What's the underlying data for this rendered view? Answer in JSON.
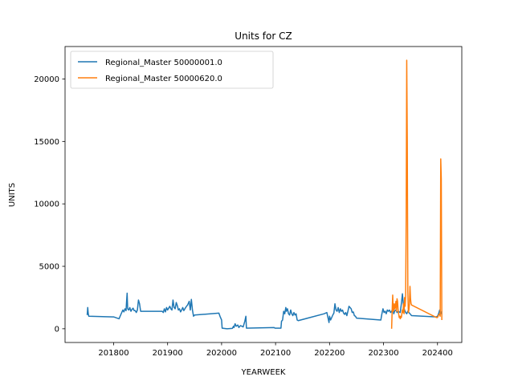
{
  "chart_data": {
    "type": "line",
    "title": "Units for CZ",
    "xlabel": "YEARWEEK",
    "ylabel": "UNITS",
    "xlim": [
      201710,
      202445
    ],
    "ylim": [
      -1100,
      22600
    ],
    "x_ticks": [
      201800,
      201900,
      202000,
      202100,
      202200,
      202300,
      202400
    ],
    "y_ticks": [
      0,
      5000,
      10000,
      15000,
      20000
    ],
    "grid": false,
    "legend_position": "top-left",
    "series": [
      {
        "name": "Regional_Master 50000001.0",
        "color": "#1f77b4",
        "points": [
          [
            201751,
            1100
          ],
          [
            201752,
            1700
          ],
          [
            201753,
            1200
          ],
          [
            201754,
            1000
          ],
          [
            201800,
            950
          ],
          [
            201810,
            800
          ],
          [
            201815,
            1300
          ],
          [
            201817,
            1500
          ],
          [
            201819,
            1350
          ],
          [
            201821,
            1600
          ],
          [
            201823,
            1450
          ],
          [
            201824,
            2200
          ],
          [
            201825,
            2850
          ],
          [
            201826,
            1600
          ],
          [
            201828,
            1500
          ],
          [
            201830,
            1700
          ],
          [
            201832,
            1400
          ],
          [
            201834,
            1550
          ],
          [
            201836,
            1650
          ],
          [
            201838,
            1450
          ],
          [
            201840,
            1450
          ],
          [
            201842,
            1300
          ],
          [
            201844,
            1500
          ],
          [
            201846,
            2300
          ],
          [
            201848,
            2000
          ],
          [
            201850,
            1400
          ],
          [
            201890,
            1400
          ],
          [
            201892,
            1300
          ],
          [
            201894,
            1600
          ],
          [
            201896,
            1350
          ],
          [
            201898,
            1700
          ],
          [
            201900,
            1500
          ],
          [
            201904,
            1800
          ],
          [
            201906,
            1600
          ],
          [
            201908,
            1500
          ],
          [
            201910,
            2300
          ],
          [
            201912,
            1700
          ],
          [
            201914,
            1600
          ],
          [
            201916,
            2100
          ],
          [
            201918,
            1850
          ],
          [
            201920,
            1500
          ],
          [
            201922,
            1600
          ],
          [
            201924,
            1350
          ],
          [
            201926,
            1500
          ],
          [
            201928,
            1700
          ],
          [
            201930,
            1450
          ],
          [
            201932,
            1600
          ],
          [
            201935,
            1800
          ],
          [
            201937,
            1900
          ],
          [
            201940,
            2200
          ],
          [
            201942,
            1500
          ],
          [
            201944,
            2350
          ],
          [
            201946,
            1500
          ],
          [
            201948,
            1000
          ],
          [
            201950,
            1100
          ],
          [
            201995,
            1250
          ],
          [
            201997,
            1000
          ],
          [
            202000,
            700
          ],
          [
            202001,
            50
          ],
          [
            202010,
            0
          ],
          [
            202020,
            30
          ],
          [
            202022,
            200
          ],
          [
            202023,
            100
          ],
          [
            202025,
            400
          ],
          [
            202027,
            200
          ],
          [
            202030,
            300
          ],
          [
            202032,
            100
          ],
          [
            202035,
            250
          ],
          [
            202040,
            150
          ],
          [
            202043,
            600
          ],
          [
            202045,
            1000
          ],
          [
            202046,
            50
          ],
          [
            202097,
            100
          ],
          [
            202099,
            50
          ],
          [
            202101,
            50
          ],
          [
            202110,
            50
          ],
          [
            202111,
            600
          ],
          [
            202113,
            700
          ],
          [
            202115,
            1400
          ],
          [
            202117,
            1200
          ],
          [
            202119,
            1700
          ],
          [
            202120,
            1400
          ],
          [
            202122,
            1600
          ],
          [
            202124,
            1200
          ],
          [
            202126,
            1100
          ],
          [
            202128,
            1500
          ],
          [
            202130,
            1200
          ],
          [
            202132,
            1050
          ],
          [
            202134,
            1300
          ],
          [
            202136,
            1100
          ],
          [
            202138,
            1200
          ],
          [
            202140,
            700
          ],
          [
            202142,
            650
          ],
          [
            202190,
            1200
          ],
          [
            202195,
            1300
          ],
          [
            202197,
            900
          ],
          [
            202199,
            500
          ],
          [
            202200,
            1000
          ],
          [
            202202,
            700
          ],
          [
            202204,
            900
          ],
          [
            202206,
            1100
          ],
          [
            202208,
            1250
          ],
          [
            202210,
            2000
          ],
          [
            202212,
            1500
          ],
          [
            202214,
            1400
          ],
          [
            202216,
            1700
          ],
          [
            202218,
            1300
          ],
          [
            202220,
            1600
          ],
          [
            202222,
            1400
          ],
          [
            202224,
            1500
          ],
          [
            202226,
            1250
          ],
          [
            202228,
            1150
          ],
          [
            202230,
            1300
          ],
          [
            202232,
            1050
          ],
          [
            202234,
            1400
          ],
          [
            202236,
            1800
          ],
          [
            202238,
            1700
          ],
          [
            202240,
            1600
          ],
          [
            202242,
            1300
          ],
          [
            202244,
            1350
          ],
          [
            202246,
            1050
          ],
          [
            202248,
            1000
          ],
          [
            202250,
            850
          ],
          [
            202295,
            700
          ],
          [
            202297,
            1200
          ],
          [
            202299,
            1600
          ],
          [
            202301,
            1300
          ],
          [
            202303,
            1400
          ],
          [
            202305,
            1200
          ],
          [
            202307,
            1500
          ],
          [
            202309,
            1400
          ],
          [
            202311,
            1500
          ],
          [
            202313,
            1300
          ],
          [
            202315,
            1400
          ],
          [
            202317,
            1600
          ],
          [
            202319,
            1200
          ],
          [
            202321,
            1450
          ],
          [
            202323,
            1500
          ],
          [
            202325,
            1300
          ],
          [
            202327,
            1400
          ],
          [
            202329,
            1350
          ],
          [
            202331,
            1300
          ],
          [
            202333,
            2000
          ],
          [
            202335,
            2800
          ],
          [
            202337,
            1800
          ],
          [
            202339,
            1500
          ],
          [
            202341,
            1300
          ],
          [
            202343,
            1200
          ],
          [
            202345,
            1400
          ],
          [
            202347,
            1300
          ],
          [
            202349,
            1200
          ],
          [
            202351,
            1100
          ],
          [
            202352,
            1050
          ],
          [
            202398,
            950
          ],
          [
            202400,
            1000
          ],
          [
            202402,
            1200
          ],
          [
            202404,
            1500
          ],
          [
            202406,
            1200
          ],
          [
            202407,
            1300
          ],
          [
            202408,
            1400
          ]
        ]
      },
      {
        "name": "Regional_Master 50000620.0",
        "color": "#ff7f0e",
        "points": [
          [
            202315,
            0
          ],
          [
            202316,
            1500
          ],
          [
            202317,
            2700
          ],
          [
            202318,
            1400
          ],
          [
            202319,
            1500
          ],
          [
            202320,
            2000
          ],
          [
            202321,
            1600
          ],
          [
            202322,
            1800
          ],
          [
            202323,
            2200
          ],
          [
            202324,
            1400
          ],
          [
            202325,
            2400
          ],
          [
            202326,
            2200
          ],
          [
            202327,
            1500
          ],
          [
            202328,
            1200
          ],
          [
            202329,
            900
          ],
          [
            202330,
            1000
          ],
          [
            202331,
            800
          ],
          [
            202332,
            1000
          ],
          [
            202333,
            900
          ],
          [
            202334,
            1200
          ],
          [
            202335,
            1500
          ],
          [
            202336,
            1300
          ],
          [
            202337,
            2000
          ],
          [
            202338,
            1200
          ],
          [
            202339,
            2500
          ],
          [
            202340,
            1800
          ],
          [
            202341,
            2600
          ],
          [
            202342,
            9000
          ],
          [
            202343,
            21500
          ],
          [
            202344,
            15000
          ],
          [
            202345,
            3000
          ],
          [
            202346,
            1300
          ],
          [
            202347,
            1500
          ],
          [
            202348,
            2000
          ],
          [
            202349,
            3400
          ],
          [
            202350,
            2400
          ],
          [
            202351,
            2000
          ],
          [
            202352,
            1900
          ],
          [
            202398,
            900
          ],
          [
            202400,
            900
          ],
          [
            202402,
            1100
          ],
          [
            202404,
            1200
          ],
          [
            202405,
            1000
          ],
          [
            202406,
            13600
          ],
          [
            202407,
            12000
          ],
          [
            202408,
            700
          ]
        ]
      }
    ]
  }
}
